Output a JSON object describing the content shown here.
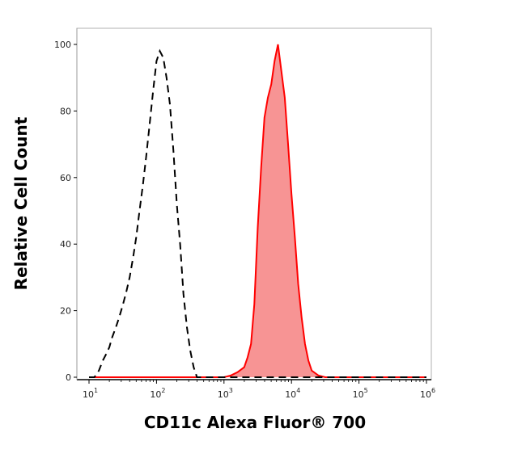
{
  "chart_data": {
    "type": "area",
    "xlabel": "CD11c Alexa Fluor® 700",
    "ylabel": "Relative Cell Count",
    "x_scale": "log",
    "xlim": [
      10,
      1000000
    ],
    "ylim": [
      0,
      100
    ],
    "x_ticks": [
      {
        "base": "10",
        "exp": "1"
      },
      {
        "base": "10",
        "exp": "2"
      },
      {
        "base": "10",
        "exp": "3"
      },
      {
        "base": "10",
        "exp": "4"
      },
      {
        "base": "10",
        "exp": "5"
      },
      {
        "base": "10",
        "exp": "6"
      }
    ],
    "y_ticks": [
      "0",
      "20",
      "40",
      "60",
      "80",
      "100"
    ],
    "grid": false,
    "legend": "none",
    "series": [
      {
        "style": "dashed-line",
        "color": "#000000",
        "fill": "none",
        "x": [
          10,
          12,
          14,
          16,
          18,
          20,
          22,
          25,
          28,
          32,
          36,
          40,
          45,
          50,
          56,
          63,
          70,
          79,
          89,
          100,
          112,
          126,
          141,
          158,
          178,
          200,
          224,
          251,
          282,
          316,
          355,
          398,
          1000000
        ],
        "y": [
          0,
          0,
          2,
          5,
          7,
          9,
          12,
          15,
          18,
          22,
          26,
          30,
          36,
          42,
          50,
          58,
          66,
          76,
          86,
          95,
          98,
          96,
          90,
          82,
          68,
          52,
          40,
          25,
          15,
          8,
          3,
          0,
          0
        ]
      },
      {
        "style": "filled-area",
        "color": "#ff0000",
        "fill": "#f79494",
        "x": [
          10,
          1000,
          1259,
          1585,
          1995,
          2239,
          2512,
          2818,
          3162,
          3548,
          3981,
          4467,
          5012,
          5623,
          6310,
          7079,
          7943,
          8913,
          10000,
          11220,
          12589,
          14125,
          15849,
          17783,
          19953,
          25119,
          31623,
          1000000
        ],
        "y": [
          0,
          0,
          0.5,
          1.5,
          3,
          6,
          10,
          22,
          45,
          63,
          78,
          84,
          88,
          95,
          100,
          92,
          84,
          70,
          55,
          42,
          28,
          18,
          10,
          5,
          2,
          0.5,
          0,
          0
        ]
      }
    ]
  }
}
